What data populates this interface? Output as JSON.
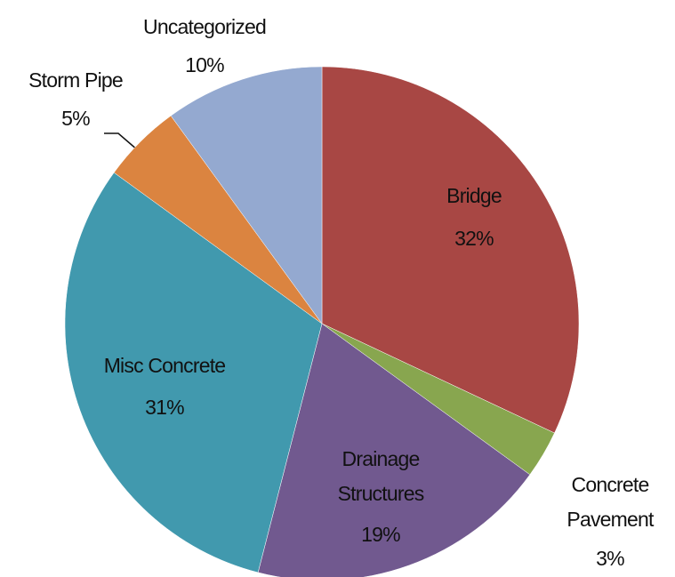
{
  "chart_data": {
    "type": "pie",
    "categories": [
      "Bridge",
      "Concrete Pavement",
      "Drainage Structures",
      "Misc Concrete",
      "Storm Pipe",
      "Uncategorized"
    ],
    "values": [
      32,
      3,
      19,
      31,
      5,
      10
    ],
    "value_labels": [
      "32%",
      "3%",
      "19%",
      "31%",
      "5%",
      "10%"
    ],
    "colors": [
      "#a84744",
      "#88a64f",
      "#71598f",
      "#4199ae",
      "#db8440",
      "#94a9d0"
    ]
  }
}
